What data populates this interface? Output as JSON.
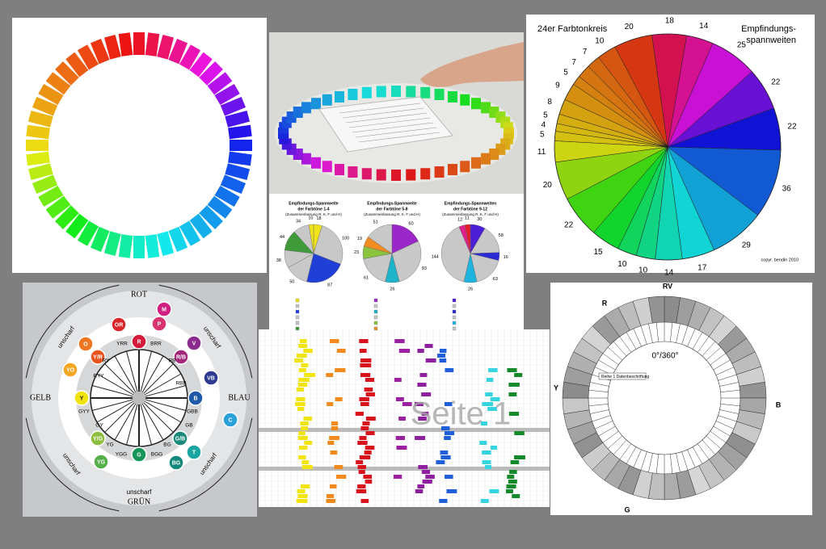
{
  "collage": {
    "farbtonkreis": {
      "title": "24er Farbtonkreis",
      "subtitle_lines": [
        "Empfindungs-",
        "spannweiten"
      ],
      "labels": [
        18,
        14,
        25,
        22,
        22,
        36,
        29,
        17,
        14,
        10,
        10,
        15,
        22,
        20,
        11,
        5,
        4,
        5,
        8,
        9,
        5,
        7,
        7,
        10,
        20
      ],
      "copyright": "copyr. bendin 2010"
    },
    "pie_charts": [
      {
        "title_lines": [
          "Empfindungs-Spannweite",
          "der Farbtöne 1-4",
          "(Zusammenfassung R, K, F und H)"
        ],
        "labels": [
          18,
          100,
          87,
          50,
          38,
          44,
          34,
          10
        ]
      },
      {
        "title_lines": [
          "Empfindungs-Spannweite",
          "der Farbtöne 5-8",
          "(Zusammenfassung R, K, F und H)"
        ],
        "labels": [
          60,
          93,
          26,
          61,
          23,
          19,
          51
        ]
      },
      {
        "title_lines": [
          "Empfindungs-Spannweiten",
          "der Farbtöne 9-12",
          "(Zusammenfassung R, K, F und H)"
        ],
        "labels": [
          30,
          58,
          16,
          63,
          26,
          144,
          12,
          11
        ]
      }
    ],
    "diagram": {
      "directions": [
        "ROT",
        "BLAU",
        "GRÜN",
        "GELB"
      ],
      "unscharf": "unscharf",
      "nodes": [
        "M",
        "OR",
        "P",
        "R",
        "V",
        "O",
        "Y/R",
        "R/B",
        "YO",
        "VB",
        "Y",
        "B",
        "C",
        "Y/G",
        "G/B",
        "YG",
        "G",
        "BG",
        "T"
      ],
      "inner_labels": [
        "YRR",
        "BRR",
        "RY",
        "RB",
        "RYY",
        "RBB",
        "GYY",
        "GBB",
        "GY",
        "GB",
        "YG",
        "BG",
        "YGG",
        "BGG"
      ]
    },
    "spreadsheet": {
      "watermark": "Seite 1"
    },
    "ring_chart": {
      "labels": [
        "RV",
        "R",
        "Y",
        "B",
        "G"
      ],
      "center": "0°/360°",
      "note": "Reihe 1 Datenbeschriftung"
    }
  }
}
